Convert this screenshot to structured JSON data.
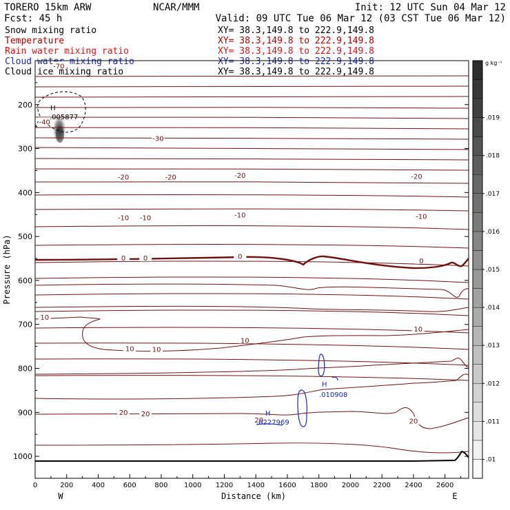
{
  "header": {
    "model": "TORERO  15km ARW",
    "org": "NCAR/MMM",
    "init": "Init: 12 UTC Sun 04 Mar 12",
    "fcst": "Fcst:   45 h",
    "valid": "Valid: 09 UTC Tue 06 Mar 12 (03 CST Tue 06 Mar 12)"
  },
  "fields": [
    {
      "name": "Snow mixing ratio",
      "xy": "XY=  38.3,149.8 to 222.9,149.8",
      "color": "#000000"
    },
    {
      "name": "Temperature",
      "xy": "XY=  38.3,149.8 to 222.9,149.8",
      "color": "#b00000"
    },
    {
      "name": "Rain water mixing ratio",
      "xy": "XY=  38.3,149.8 to 222.9,149.8",
      "color": "#d01818"
    },
    {
      "name": "Cloud water mixing ratio",
      "xy": "XY=  38.3,149.8 to 222.9,149.8",
      "color": "#1c2aa8"
    },
    {
      "name": "Cloud ice mixing ratio",
      "xy": "XY=  38.3,149.8 to 222.9,149.8",
      "color": "#000000"
    }
  ],
  "chart_data": {
    "type": "cross-section contour",
    "xlabel": "Distance (km)",
    "ylabel": "Pressure (hPa)",
    "xlim": [
      0,
      2750
    ],
    "ylim": [
      1050,
      100
    ],
    "x_ticks": [
      0,
      200,
      400,
      600,
      800,
      1000,
      1200,
      1400,
      1600,
      1800,
      2000,
      2200,
      2400,
      2600
    ],
    "y_ticks": [
      200,
      300,
      400,
      500,
      600,
      700,
      800,
      900,
      1000
    ],
    "end_labels": {
      "left": "W",
      "right": "E"
    },
    "colorbar": {
      "unit": "g kg⁻¹",
      "ticks": [
        0.01,
        0.011,
        0.012,
        0.013,
        0.014,
        0.015,
        0.016,
        0.017,
        0.018,
        0.019
      ],
      "tick_labels": [
        ".01",
        ".011",
        ".012",
        ".013",
        ".014",
        ".015",
        ".016",
        ".017",
        ".018",
        ".019"
      ],
      "range": [
        0.0095,
        0.0205
      ]
    },
    "temperature_contours": [
      {
        "label": "-70",
        "at": [
          [
            150,
            113
          ]
        ]
      },
      {
        "label": "-40",
        "at": [
          [
            60,
            240
          ]
        ]
      },
      {
        "label": "-30",
        "at": [
          [
            780,
            278
          ]
        ]
      },
      {
        "label": "-20",
        "at": [
          [
            560,
            366
          ],
          [
            860,
            366
          ],
          [
            1300,
            362
          ],
          [
            2420,
            364
          ]
        ]
      },
      {
        "label": "-10",
        "at": [
          [
            560,
            458
          ],
          [
            700,
            458
          ],
          [
            1300,
            452
          ],
          [
            2450,
            455
          ]
        ]
      },
      {
        "label": "0",
        "at": [
          [
            560,
            550
          ],
          [
            700,
            550
          ],
          [
            1300,
            546
          ],
          [
            2450,
            556
          ]
        ]
      },
      {
        "label": "10",
        "at": [
          [
            60,
            685
          ],
          [
            600,
            756
          ],
          [
            770,
            758
          ],
          [
            1330,
            737
          ],
          [
            2430,
            711
          ]
        ]
      },
      {
        "label": "20",
        "at": [
          [
            560,
            901
          ],
          [
            700,
            904
          ],
          [
            1420,
            918
          ],
          [
            2400,
            921
          ]
        ]
      }
    ],
    "snow_maximum": {
      "label": "H",
      "value": ".005877",
      "x": 120,
      "p": 213
    },
    "cloud_water_maxima": [
      {
        "label": "H",
        "value": ".010908",
        "x": 1870,
        "p": 858
      },
      {
        "label": "H",
        "value": ".0227969",
        "x": 1430,
        "p": 918
      }
    ]
  }
}
